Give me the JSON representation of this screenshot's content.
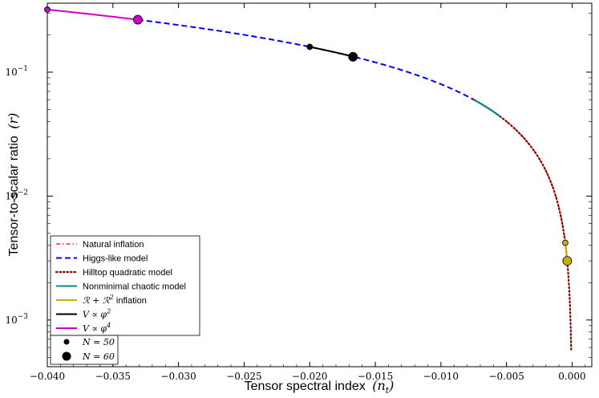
{
  "chart_data": {
    "type": "line",
    "xlabel": "Tensor spectral index",
    "xlabel_symbol": "(n",
    "xlabel_symbol_sub": "t",
    "xlabel_symbol_close": ")",
    "ylabel": "Tensor-to-scalar ratio",
    "ylabel_symbol": "(r)",
    "xlim": [
      -0.04,
      0.0015
    ],
    "ylim": [
      0.00042,
      0.36
    ],
    "yscale": "log",
    "grid": false,
    "legend_position": "lower-left",
    "x_ticks": [
      {
        "value": -0.04,
        "label": "−0.040"
      },
      {
        "value": -0.035,
        "label": "−0.035"
      },
      {
        "value": -0.03,
        "label": "−0.030"
      },
      {
        "value": -0.025,
        "label": "−0.025"
      },
      {
        "value": -0.02,
        "label": "−0.020"
      },
      {
        "value": -0.015,
        "label": "−0.015"
      },
      {
        "value": -0.01,
        "label": "−0.010"
      },
      {
        "value": -0.005,
        "label": "−0.005"
      },
      {
        "value": 0.0,
        "label": "0.000"
      }
    ],
    "y_ticks": [
      {
        "value": 0.1,
        "base": "10",
        "exp": "−1"
      },
      {
        "value": 0.01,
        "base": "10",
        "exp": "−2"
      },
      {
        "value": 0.001,
        "base": "10",
        "exp": "−3"
      }
    ],
    "series": [
      {
        "name": "Natural inflation",
        "color": "#ff6347",
        "style": "dashdot",
        "x_range": [
          -0.0076,
          -0.00055
        ]
      },
      {
        "name": "Higgs-like model",
        "color": "#0000ff",
        "style": "dashed",
        "x_range": [
          -0.0331,
          -0.0055
        ]
      },
      {
        "name": "Hilltop quadratic model",
        "color": "#8b0000",
        "style": "dotted",
        "x_range": [
          -0.0076,
          -7e-05
        ]
      },
      {
        "name": "Nonminimal chaotic model",
        "color": "#008b8b",
        "style": "solid",
        "x_range": [
          -0.0075,
          -0.0055
        ]
      },
      {
        "name": "R + R² inflation",
        "name_math": "ℛ + ℛ",
        "name_sup": "2",
        "name_suffix": " inflation",
        "color": "#c9b000",
        "style": "solid",
        "x_range": [
          -0.00052,
          -0.00037
        ]
      },
      {
        "name": "V ∝ φ²",
        "name_math": "V ∝ φ",
        "name_sup": "2",
        "color": "#000000",
        "style": "solid",
        "x_range": [
          -0.02,
          -0.0167
        ]
      },
      {
        "name": "V ∝ φ⁴",
        "name_math": "V ∝ φ",
        "name_sup": "4",
        "color": "#cc00cc",
        "style": "solid",
        "x_range": [
          -0.04,
          -0.0331
        ]
      }
    ],
    "points": [
      {
        "model": "V ∝ φ⁴",
        "N": 50,
        "x": -0.04,
        "y": 0.32,
        "color": "#cc00cc"
      },
      {
        "model": "V ∝ φ⁴",
        "N": 60,
        "x": -0.0331,
        "y": 0.265,
        "color": "#cc00cc"
      },
      {
        "model": "V ∝ φ²",
        "N": 50,
        "x": -0.02,
        "y": 0.16,
        "color": "#000000"
      },
      {
        "model": "V ∝ φ²",
        "N": 60,
        "x": -0.0167,
        "y": 0.133,
        "color": "#000000"
      },
      {
        "model": "R + R² inflation",
        "N": 50,
        "x": -0.00052,
        "y": 0.0042,
        "color": "#c9b000"
      },
      {
        "model": "R + R² inflation",
        "N": 60,
        "x": -0.00037,
        "y": 0.003,
        "color": "#c9b000"
      }
    ],
    "size_legend": [
      {
        "label_math": "N = 50",
        "N": 50
      },
      {
        "label_math": "N = 60",
        "N": 60
      }
    ]
  }
}
